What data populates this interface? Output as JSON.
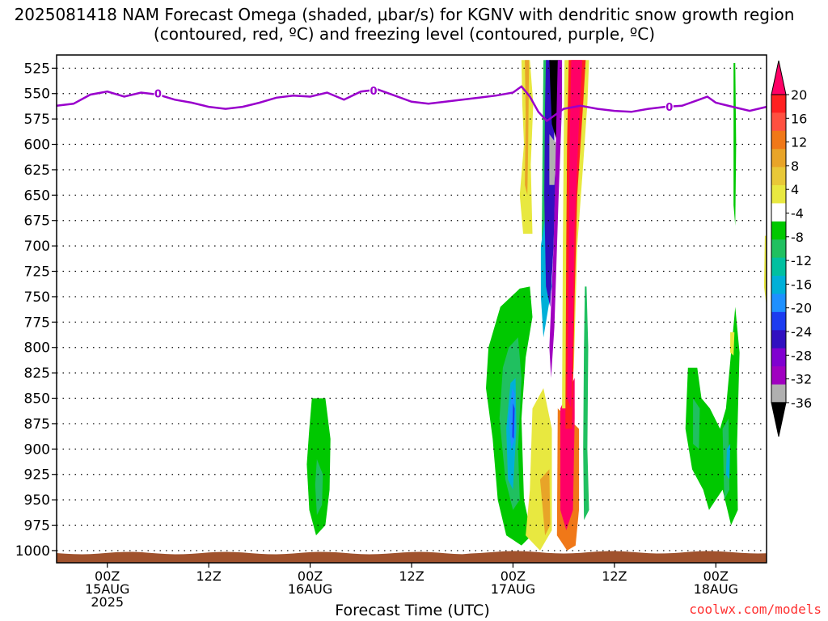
{
  "title": "2025081418 NAM Forecast Omega (shaded, μbar/s) for KGNV with dendritic snow growth region (contoured, red, ºC) and freezing level (contoured, purple, ºC)",
  "credit": "coolwx.com/models",
  "chart_data": {
    "type": "heatmap",
    "xlabel": "Forecast Time (UTC)",
    "ylabel": "",
    "x_ticks": [
      {
        "hours": 6,
        "lines": [
          "00Z",
          "15AUG",
          "2025"
        ]
      },
      {
        "hours": 18,
        "lines": [
          "12Z"
        ]
      },
      {
        "hours": 30,
        "lines": [
          "00Z",
          "16AUG"
        ]
      },
      {
        "hours": 42,
        "lines": [
          "12Z"
        ]
      },
      {
        "hours": 54,
        "lines": [
          "00Z",
          "17AUG"
        ]
      },
      {
        "hours": 66,
        "lines": [
          "12Z"
        ]
      },
      {
        "hours": 78,
        "lines": [
          "00Z",
          "18AUG"
        ]
      }
    ],
    "xlim_hours": [
      0,
      84
    ],
    "y_ticks": [
      525,
      550,
      575,
      600,
      625,
      650,
      675,
      700,
      725,
      750,
      775,
      800,
      825,
      850,
      875,
      900,
      925,
      950,
      975,
      1000
    ],
    "ylim": [
      512,
      1012
    ],
    "colorbar": {
      "unit": "μbar/s",
      "labels": [
        20,
        16,
        12,
        8,
        4,
        -4,
        -8,
        -12,
        -16,
        -20,
        -24,
        -28,
        -32,
        -36
      ],
      "colors": [
        "#ff0066",
        "#ff2020",
        "#ff5040",
        "#f07818",
        "#e8a428",
        "#e8c838",
        "#e8e840",
        "#ffffff",
        "#00c800",
        "#20c060",
        "#00c0a0",
        "#00b0d8",
        "#1e90ff",
        "#1c3cf0",
        "#3010c0",
        "#8000d0",
        "#a000c0",
        "#b0b0b0",
        "#000000"
      ]
    },
    "freezing_level": {
      "label": "0",
      "color": "#9900cc",
      "hours": [
        0,
        2,
        4,
        6,
        8,
        10,
        12,
        14,
        16,
        18,
        20,
        22,
        24,
        26,
        28,
        30,
        32,
        34,
        36,
        38,
        40,
        42,
        44,
        46,
        48,
        50,
        52,
        54,
        55,
        56,
        57,
        58,
        60,
        62,
        64,
        66,
        68,
        70,
        72,
        74,
        76,
        77,
        78,
        80,
        82,
        84
      ],
      "pressure": [
        562,
        560,
        551,
        548,
        553,
        549,
        551,
        556,
        559,
        563,
        565,
        563,
        559,
        554,
        552,
        553,
        549,
        556,
        548,
        546,
        552,
        558,
        560,
        558,
        556,
        554,
        552,
        549,
        543,
        553,
        568,
        577,
        565,
        562,
        565,
        567,
        568,
        565,
        563,
        562,
        556,
        553,
        559,
        563,
        567,
        563
      ]
    },
    "omega_regions": [
      {
        "v": -4,
        "pts": [
          [
            30.2,
            850
          ],
          [
            31.8,
            850
          ],
          [
            32.4,
            890
          ],
          [
            32.3,
            940
          ],
          [
            31.8,
            975
          ],
          [
            30.7,
            985
          ],
          [
            29.9,
            960
          ],
          [
            29.6,
            915
          ],
          [
            29.9,
            880
          ]
        ]
      },
      {
        "v": -8,
        "pts": [
          [
            30.8,
            910
          ],
          [
            31.5,
            925
          ],
          [
            31.4,
            955
          ],
          [
            30.8,
            965
          ],
          [
            30.6,
            935
          ]
        ]
      },
      {
        "v": -4,
        "pts": [
          [
            52.5,
            760
          ],
          [
            54.8,
            742
          ],
          [
            56,
            740
          ],
          [
            56.3,
            770
          ],
          [
            55.5,
            810
          ],
          [
            55,
            870
          ],
          [
            55.3,
            950
          ],
          [
            56.2,
            985
          ],
          [
            55,
            995
          ],
          [
            53.2,
            985
          ],
          [
            52.2,
            950
          ],
          [
            51.6,
            890
          ],
          [
            50.8,
            840
          ],
          [
            51.1,
            800
          ]
        ]
      },
      {
        "v": -8,
        "pts": [
          [
            53.5,
            800
          ],
          [
            54.6,
            790
          ],
          [
            55,
            830
          ],
          [
            54.6,
            900
          ],
          [
            54.8,
            950
          ],
          [
            54,
            960
          ],
          [
            53.1,
            930
          ],
          [
            52.4,
            870
          ],
          [
            52.8,
            820
          ]
        ]
      },
      {
        "v": -12,
        "pts": [
          [
            53.7,
            835
          ],
          [
            54.3,
            830
          ],
          [
            54.4,
            880
          ],
          [
            54,
            940
          ],
          [
            53.4,
            930
          ],
          [
            53.2,
            880
          ]
        ]
      },
      {
        "v": -16,
        "pts": [
          [
            53.9,
            840
          ],
          [
            54.2,
            845
          ],
          [
            54.2,
            890
          ],
          [
            53.8,
            900
          ],
          [
            53.5,
            870
          ]
        ]
      },
      {
        "v": -20,
        "pts": [
          [
            54,
            855
          ],
          [
            54.2,
            860
          ],
          [
            54.1,
            890
          ],
          [
            53.9,
            888
          ]
        ]
      },
      {
        "v": 4,
        "pts": [
          [
            55,
            517
          ],
          [
            56,
            517
          ],
          [
            56.4,
            560
          ],
          [
            56.1,
            620
          ],
          [
            56.3,
            688
          ],
          [
            55.2,
            688
          ],
          [
            54.8,
            650
          ],
          [
            55.3,
            600
          ],
          [
            55.1,
            560
          ]
        ]
      },
      {
        "v": 8,
        "pts": [
          [
            55.4,
            517
          ],
          [
            55.9,
            517
          ],
          [
            55.8,
            600
          ],
          [
            55.7,
            650
          ],
          [
            55.4,
            640
          ],
          [
            55.5,
            570
          ]
        ]
      },
      {
        "v": 4,
        "pts": [
          [
            56.3,
            860
          ],
          [
            57.6,
            840
          ],
          [
            58.6,
            880
          ],
          [
            58.6,
            980
          ],
          [
            57.2,
            1000
          ],
          [
            55.5,
            985
          ],
          [
            56,
            940
          ]
        ]
      },
      {
        "v": 8,
        "pts": [
          [
            57.2,
            930
          ],
          [
            58.3,
            920
          ],
          [
            58.4,
            975
          ],
          [
            57.8,
            985
          ]
        ]
      },
      {
        "v": -8,
        "pts": [
          [
            57.6,
            517
          ],
          [
            58.1,
            517
          ],
          [
            58.4,
            560
          ],
          [
            58.2,
            650
          ],
          [
            57.5,
            720
          ],
          [
            57.4,
            690
          ],
          [
            57.5,
            600
          ]
        ]
      },
      {
        "v": -12,
        "pts": [
          [
            57.3,
            700
          ],
          [
            58.2,
            650
          ],
          [
            58.6,
            740
          ],
          [
            57.6,
            790
          ],
          [
            57.3,
            750
          ]
        ]
      },
      {
        "v": -24,
        "pts": [
          [
            57.9,
            517
          ],
          [
            58.4,
            517
          ],
          [
            58.8,
            560
          ],
          [
            59,
            640
          ],
          [
            58.8,
            700
          ],
          [
            58.4,
            760
          ],
          [
            57.9,
            740
          ],
          [
            57.7,
            650
          ],
          [
            57.8,
            560
          ]
        ]
      },
      {
        "v": -36,
        "pts": [
          [
            58.3,
            517
          ],
          [
            59.6,
            517
          ],
          [
            59.7,
            560
          ],
          [
            59.3,
            600
          ],
          [
            58.6,
            580
          ],
          [
            58.4,
            540
          ]
        ]
      },
      {
        "v": -32,
        "pts": [
          [
            58.3,
            590
          ],
          [
            59.2,
            600
          ],
          [
            58.9,
            640
          ],
          [
            58.3,
            640
          ]
        ]
      },
      {
        "v": -28,
        "pts": [
          [
            59.3,
            517
          ],
          [
            59.8,
            517
          ],
          [
            59.8,
            560
          ],
          [
            59.4,
            650
          ],
          [
            58.9,
            780
          ],
          [
            58.5,
            830
          ],
          [
            58.3,
            800
          ],
          [
            58.8,
            700
          ]
        ]
      },
      {
        "v": 12,
        "pts": [
          [
            59.3,
            860
          ],
          [
            61.8,
            880
          ],
          [
            61.8,
            960
          ],
          [
            61.4,
            995
          ],
          [
            60.4,
            1000
          ],
          [
            59.2,
            985
          ]
        ]
      },
      {
        "v": 20,
        "pts": [
          [
            59.6,
            860
          ],
          [
            61.3,
            830
          ],
          [
            61.3,
            870
          ],
          [
            61.1,
            960
          ],
          [
            60.3,
            980
          ],
          [
            59.6,
            960
          ]
        ]
      },
      {
        "v": 4,
        "pts": [
          [
            60.1,
            517
          ],
          [
            63,
            517
          ],
          [
            62.8,
            560
          ],
          [
            62.3,
            620
          ],
          [
            61.6,
            700
          ],
          [
            61.2,
            820
          ],
          [
            60.8,
            860
          ],
          [
            59.8,
            860
          ],
          [
            59.9,
            700
          ],
          [
            60,
            600
          ]
        ]
      },
      {
        "v": 16,
        "pts": [
          [
            60.6,
            517
          ],
          [
            62.6,
            517
          ],
          [
            62.3,
            560
          ],
          [
            61.6,
            650
          ],
          [
            61.3,
            750
          ],
          [
            61,
            880
          ],
          [
            60.2,
            880
          ],
          [
            60.3,
            700
          ],
          [
            60.4,
            600
          ]
        ]
      },
      {
        "v": 20,
        "pts": [
          [
            60.9,
            517
          ],
          [
            62.2,
            517
          ],
          [
            61.8,
            580
          ],
          [
            61.3,
            680
          ],
          [
            61.1,
            780
          ],
          [
            60.9,
            860
          ],
          [
            60.4,
            850
          ],
          [
            60.6,
            700
          ],
          [
            60.7,
            600
          ]
        ]
      },
      {
        "v": -8,
        "pts": [
          [
            62.5,
            740
          ],
          [
            62.7,
            740
          ],
          [
            62.9,
            800
          ],
          [
            62.8,
            900
          ],
          [
            63,
            960
          ],
          [
            62.4,
            970
          ],
          [
            62.3,
            900
          ],
          [
            62.4,
            800
          ]
        ]
      },
      {
        "v": -4,
        "pts": [
          [
            74.7,
            820
          ],
          [
            75.8,
            820
          ],
          [
            76.3,
            850
          ],
          [
            77.3,
            860
          ],
          [
            78.5,
            880
          ],
          [
            79.2,
            860
          ],
          [
            80.3,
            760
          ],
          [
            80.8,
            805
          ],
          [
            80.5,
            900
          ],
          [
            80.6,
            960
          ],
          [
            79.8,
            975
          ],
          [
            78.8,
            940
          ],
          [
            77.2,
            960
          ],
          [
            76.5,
            940
          ],
          [
            75.2,
            920
          ],
          [
            74.4,
            880
          ]
        ]
      },
      {
        "v": -8,
        "pts": [
          [
            75.3,
            850
          ],
          [
            76.1,
            860
          ],
          [
            76,
            900
          ],
          [
            75.3,
            895
          ]
        ]
      },
      {
        "v": -8,
        "pts": [
          [
            78.8,
            880
          ],
          [
            79.5,
            870
          ],
          [
            79.6,
            940
          ],
          [
            79,
            950
          ]
        ]
      },
      {
        "v": -12,
        "pts": [
          [
            79.3,
            900
          ],
          [
            79.7,
            895
          ],
          [
            79.6,
            930
          ],
          [
            79.2,
            925
          ]
        ]
      },
      {
        "v": -4,
        "pts": [
          [
            80.1,
            520
          ],
          [
            80.3,
            520
          ],
          [
            80.4,
            600
          ],
          [
            80.3,
            680
          ],
          [
            80.1,
            660
          ],
          [
            80.1,
            580
          ]
        ]
      },
      {
        "v": 4,
        "pts": [
          [
            79.7,
            785
          ],
          [
            80.2,
            785
          ],
          [
            80.1,
            808
          ],
          [
            79.7,
            805
          ]
        ]
      },
      {
        "v": 4,
        "pts": [
          [
            83.8,
            690
          ],
          [
            84,
            690
          ],
          [
            84,
            760
          ],
          [
            83.7,
            740
          ]
        ]
      }
    ]
  }
}
